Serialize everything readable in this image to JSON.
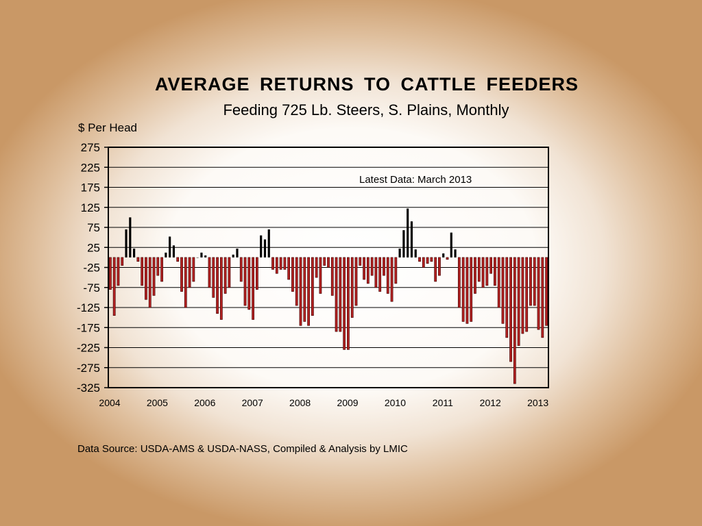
{
  "chart_data": {
    "type": "bar",
    "title": "AVERAGE  RETURNS  TO  CATTLE  FEEDERS",
    "subtitle": "Feeding 725 Lb. Steers, S. Plains, Monthly",
    "ylabel": "$ Per Head",
    "xlabel": "",
    "annotation": "Latest Data:  March 2013",
    "source": "Data Source:  USDA-AMS & USDA-NASS, Compiled & Analysis by LMIC",
    "ylim": [
      -325,
      275
    ],
    "yticks": [
      275,
      225,
      175,
      125,
      75,
      25,
      -25,
      -75,
      -125,
      -175,
      -225,
      -275,
      -325
    ],
    "xticks": [
      "2004",
      "2005",
      "2006",
      "2007",
      "2008",
      "2009",
      "2010",
      "2011",
      "2012",
      "2013"
    ],
    "grid": true,
    "legend": "none",
    "colors": {
      "positive": "#000000",
      "negative": "#b22222",
      "negative_edge": "#3a0000"
    },
    "start": "2004-01",
    "end": "2013-03",
    "values": [
      -80,
      -145,
      -70,
      -20,
      70,
      100,
      22,
      -10,
      -70,
      -105,
      -125,
      -95,
      -45,
      -60,
      12,
      52,
      30,
      -10,
      -85,
      -125,
      -75,
      -60,
      0,
      12,
      5,
      -75,
      -100,
      -140,
      -155,
      -90,
      -75,
      7,
      22,
      -60,
      -120,
      -130,
      -155,
      -80,
      55,
      45,
      70,
      -30,
      -40,
      -30,
      -30,
      -55,
      -85,
      -120,
      -170,
      -160,
      -170,
      -145,
      -50,
      -90,
      -20,
      -25,
      -95,
      -185,
      -185,
      -230,
      -230,
      -150,
      -120,
      -20,
      -55,
      -65,
      -45,
      -75,
      -85,
      -45,
      -90,
      -110,
      -65,
      22,
      68,
      122,
      90,
      20,
      -10,
      -25,
      -15,
      -10,
      -60,
      -45,
      10,
      -5,
      62,
      20,
      -125,
      -160,
      -165,
      -160,
      -90,
      -60,
      -75,
      -70,
      -40,
      -70,
      -125,
      -165,
      -200,
      -260,
      -315,
      -220,
      -190,
      -185,
      -120,
      -120,
      -180,
      -200,
      -170
    ]
  }
}
